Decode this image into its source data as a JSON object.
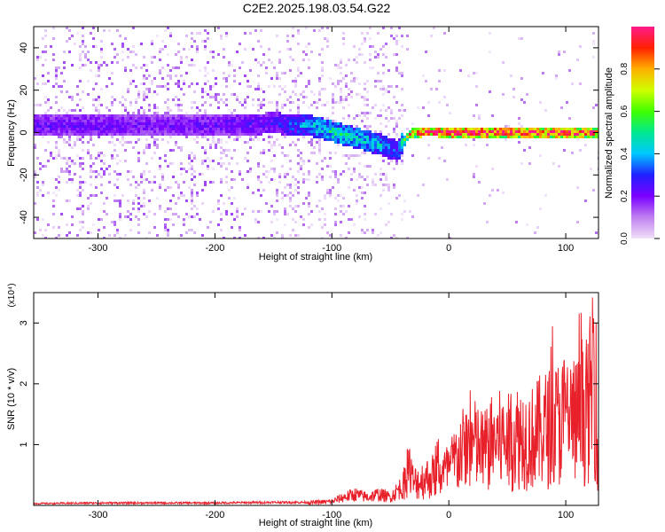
{
  "title": "C2E2.2025.198.03.54.G22",
  "chart_data": [
    {
      "type": "heatmap",
      "title": "C2E2.2025.198.03.54.G22",
      "xlabel": "Height of straight line (km)",
      "ylabel": "Frequency (Hz)",
      "xlim": [
        -355,
        128
      ],
      "ylim": [
        -50,
        50
      ],
      "xticks": [
        -300,
        -200,
        -100,
        0,
        100
      ],
      "yticks": [
        -40,
        -20,
        0,
        20,
        40
      ],
      "colorbar": {
        "label": "Normalized spectral amplitude",
        "range": [
          0,
          1
        ],
        "ticks": [
          0.0,
          0.2,
          0.4,
          0.6,
          0.8
        ],
        "colors": [
          "#f0e0f8",
          "#c080f0",
          "#7a00ff",
          "#2020ff",
          "#00c8ff",
          "#00e890",
          "#40ff00",
          "#d0ff00",
          "#ffb000",
          "#ff2000",
          "#ff1a8c"
        ]
      },
      "ridge": {
        "x": [
          -355,
          -300,
          -250,
          -200,
          -150,
          -120,
          -100,
          -80,
          -60,
          -45,
          -35,
          -20,
          0,
          50,
          100,
          128
        ],
        "frequency": [
          4,
          4,
          4,
          4,
          5,
          4,
          1,
          -2,
          -5,
          -8,
          0,
          1,
          0.5,
          0.5,
          0.5,
          0.5
        ],
        "amplitude": [
          0.22,
          0.22,
          0.2,
          0.22,
          0.25,
          0.4,
          0.48,
          0.45,
          0.4,
          0.3,
          0.8,
          0.95,
          1,
          1,
          0.97,
          0.9
        ]
      }
    },
    {
      "type": "line",
      "xlabel": "Height of straight line (km)",
      "ylabel": "SNR (10 * v/v)",
      "y_multiplier": "(x10⁴)",
      "xlim": [
        -355,
        128
      ],
      "ylim": [
        0,
        3.5
      ],
      "xticks": [
        -300,
        -200,
        -100,
        0,
        100
      ],
      "yticks": [
        1,
        2,
        3
      ],
      "series": [
        {
          "color": "#e8202a",
          "x": [
            -355,
            -300,
            -200,
            -150,
            -120,
            -100,
            -90,
            -80,
            -70,
            -60,
            -50,
            -40,
            -35,
            -30,
            -20,
            -10,
            0,
            10,
            20,
            30,
            40,
            50,
            60,
            70,
            80,
            90,
            100,
            110,
            120,
            124,
            128
          ],
          "values": [
            0.03,
            0.04,
            0.04,
            0.05,
            0.05,
            0.07,
            0.15,
            0.2,
            0.15,
            0.2,
            0.15,
            0.35,
            0.9,
            0.5,
            0.6,
            0.7,
            0.8,
            1.2,
            1.4,
            1.2,
            1.5,
            1.4,
            1.6,
            1.5,
            1.7,
            1.8,
            2.0,
            1.9,
            2.2,
            3.3,
            1.0
          ]
        }
      ]
    }
  ]
}
